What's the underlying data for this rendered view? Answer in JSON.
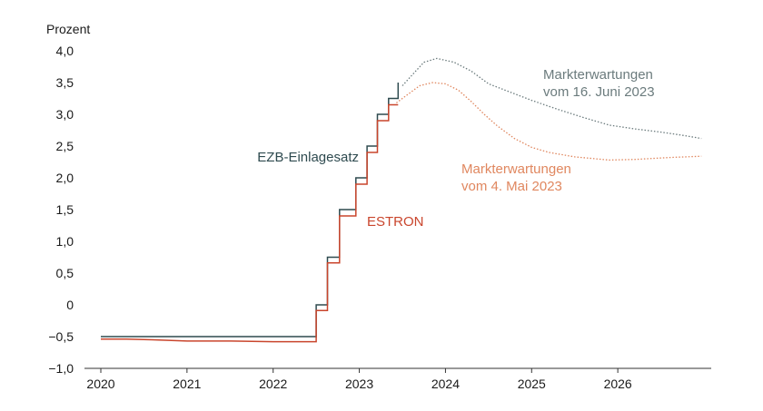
{
  "chart_data": {
    "type": "line",
    "ylabel": "Prozent",
    "ylim": [
      -1.0,
      4.0
    ],
    "xlim": [
      2020.0,
      2027.0
    ],
    "y_ticks": [
      "4,0",
      "3,5",
      "3,0",
      "2,5",
      "2,0",
      "1,5",
      "1,0",
      "0,5",
      "0",
      "−0,5",
      "−1,0"
    ],
    "y_tick_values": [
      4.0,
      3.5,
      3.0,
      2.5,
      2.0,
      1.5,
      1.0,
      0.5,
      0.0,
      -0.5,
      -1.0
    ],
    "x_ticks": [
      "2020",
      "2021",
      "2022",
      "2023",
      "2024",
      "2025",
      "2026"
    ],
    "x_tick_values": [
      2020,
      2021,
      2022,
      2023,
      2024,
      2025,
      2026
    ],
    "grid": false,
    "series": [
      {
        "name": "EZB-Einlagesatz",
        "color": "#2e4a4f",
        "style": "step",
        "points": [
          [
            2020.0,
            -0.5
          ],
          [
            2022.5,
            -0.5
          ],
          [
            2022.5,
            0.0
          ],
          [
            2022.63,
            0.0
          ],
          [
            2022.63,
            0.75
          ],
          [
            2022.77,
            0.75
          ],
          [
            2022.77,
            1.5
          ],
          [
            2022.96,
            1.5
          ],
          [
            2022.96,
            2.0
          ],
          [
            2023.09,
            2.0
          ],
          [
            2023.09,
            2.5
          ],
          [
            2023.21,
            2.5
          ],
          [
            2023.21,
            3.0
          ],
          [
            2023.34,
            3.0
          ],
          [
            2023.34,
            3.25
          ],
          [
            2023.45,
            3.25
          ],
          [
            2023.45,
            3.5
          ]
        ]
      },
      {
        "name": "ESTRON",
        "color": "#c9452c",
        "style": "step",
        "points": [
          [
            2020.0,
            -0.54
          ],
          [
            2020.3,
            -0.54
          ],
          [
            2020.6,
            -0.55
          ],
          [
            2021.0,
            -0.57
          ],
          [
            2021.5,
            -0.57
          ],
          [
            2022.0,
            -0.58
          ],
          [
            2022.3,
            -0.58
          ],
          [
            2022.5,
            -0.58
          ],
          [
            2022.5,
            -0.09
          ],
          [
            2022.63,
            -0.09
          ],
          [
            2022.63,
            0.66
          ],
          [
            2022.77,
            0.66
          ],
          [
            2022.77,
            1.4
          ],
          [
            2022.96,
            1.4
          ],
          [
            2022.96,
            1.9
          ],
          [
            2023.09,
            1.9
          ],
          [
            2023.09,
            2.4
          ],
          [
            2023.21,
            2.4
          ],
          [
            2023.21,
            2.9
          ],
          [
            2023.34,
            2.9
          ],
          [
            2023.34,
            3.15
          ],
          [
            2023.45,
            3.15
          ]
        ]
      },
      {
        "name": "Markterwartungen vom 16. Juni 2023",
        "label_lines": [
          "Markterwartungen",
          "vom 16. Juni 2023"
        ],
        "color": "#6b7b7d",
        "style": "dotted",
        "points": [
          [
            2023.5,
            3.45
          ],
          [
            2023.6,
            3.6
          ],
          [
            2023.75,
            3.82
          ],
          [
            2023.9,
            3.88
          ],
          [
            2024.1,
            3.82
          ],
          [
            2024.3,
            3.68
          ],
          [
            2024.5,
            3.48
          ],
          [
            2024.75,
            3.35
          ],
          [
            2025.0,
            3.22
          ],
          [
            2025.3,
            3.08
          ],
          [
            2025.6,
            2.95
          ],
          [
            2025.9,
            2.83
          ],
          [
            2026.2,
            2.77
          ],
          [
            2026.5,
            2.72
          ],
          [
            2026.75,
            2.67
          ],
          [
            2026.97,
            2.62
          ]
        ]
      },
      {
        "name": "Markterwartungen vom 4. Mai 2023",
        "label_lines": [
          "Markterwartungen",
          "vom 4. Mai 2023"
        ],
        "color": "#e0875f",
        "style": "dotted",
        "points": [
          [
            2023.43,
            3.18
          ],
          [
            2023.55,
            3.3
          ],
          [
            2023.7,
            3.45
          ],
          [
            2023.85,
            3.5
          ],
          [
            2024.0,
            3.48
          ],
          [
            2024.15,
            3.38
          ],
          [
            2024.3,
            3.2
          ],
          [
            2024.45,
            3.0
          ],
          [
            2024.6,
            2.82
          ],
          [
            2024.8,
            2.62
          ],
          [
            2025.0,
            2.48
          ],
          [
            2025.2,
            2.4
          ],
          [
            2025.5,
            2.33
          ],
          [
            2025.9,
            2.28
          ],
          [
            2026.2,
            2.29
          ],
          [
            2026.6,
            2.32
          ],
          [
            2026.97,
            2.34
          ]
        ]
      }
    ]
  }
}
